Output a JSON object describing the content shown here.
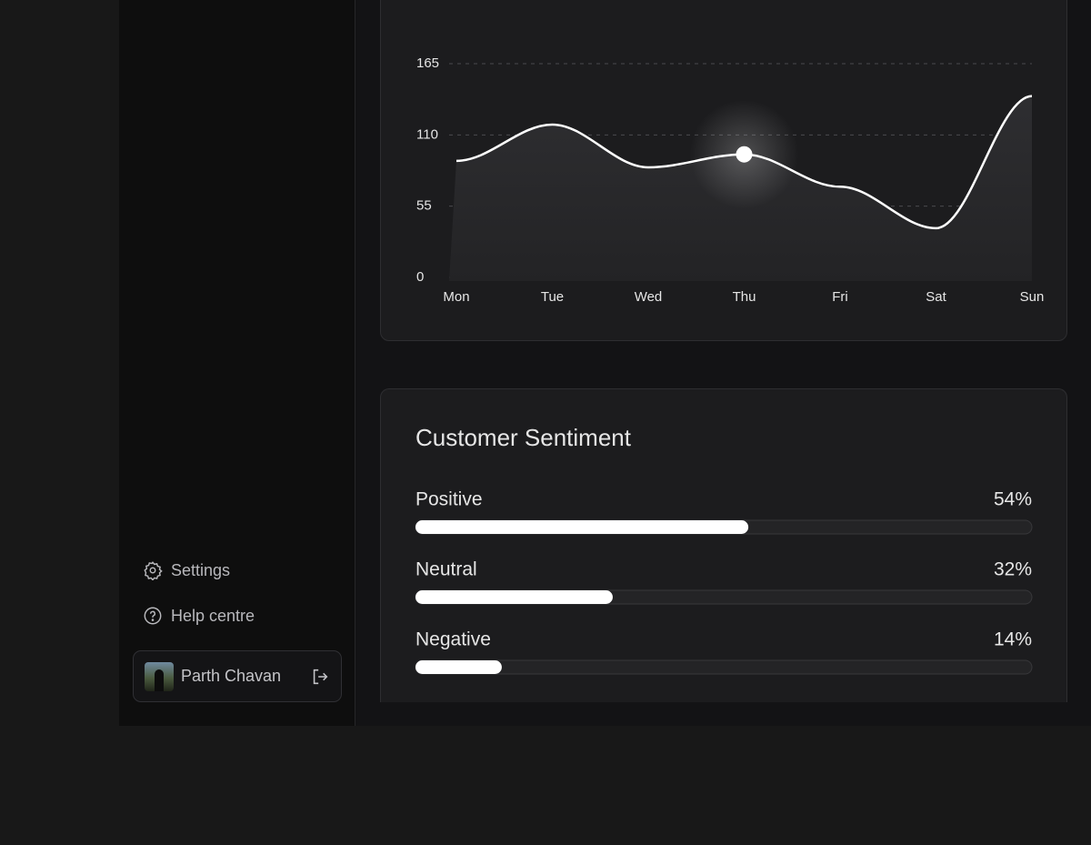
{
  "sidebar": {
    "items": [
      "Settings",
      "Help centre"
    ],
    "user": {
      "name": "Parth Chavan"
    }
  },
  "chart_data": [
    {
      "type": "line",
      "categories": [
        "Mon",
        "Tue",
        "Wed",
        "Thu",
        "Fri",
        "Sat",
        "Sun"
      ],
      "values": [
        90,
        118,
        85,
        95,
        70,
        38,
        140
      ],
      "color": "#ffffff",
      "ylim": [
        0,
        165
      ],
      "yticks": [
        0,
        55,
        110,
        165
      ],
      "grid": true,
      "highlight_index": 3
    },
    {
      "type": "bar",
      "orientation": "horizontal",
      "title": "Customer Sentiment",
      "categories": [
        "Positive",
        "Neutral",
        "Negative"
      ],
      "values": [
        54,
        32,
        14
      ],
      "value_labels": [
        "54%",
        "32%",
        "14%"
      ],
      "xlim": [
        0,
        100
      ],
      "color": "#ffffff"
    }
  ]
}
